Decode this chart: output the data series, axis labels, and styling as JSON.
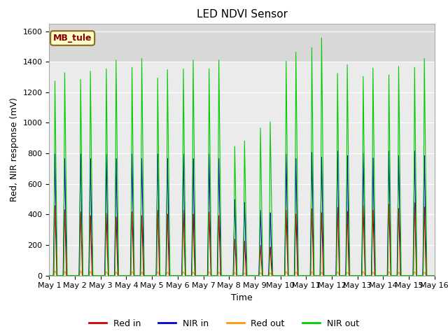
{
  "title": "LED NDVI Sensor",
  "xlabel": "Time",
  "ylabel": "Red, NIR response (mV)",
  "ylim": [
    0,
    1650
  ],
  "background_color": "#ffffff",
  "plot_bg_color": "#ebebeb",
  "shade_above": 1400,
  "shade_color": "#d8d8d8",
  "annotation_text": "MB_tule",
  "annotation_bg": "#ffffcc",
  "annotation_border": "#8b6914",
  "annotation_text_color": "#8b0000",
  "legend_entries": [
    "Red in",
    "NIR in",
    "Red out",
    "NIR out"
  ],
  "line_colors": [
    "#cc0000",
    "#0000cc",
    "#ff9900",
    "#00cc00"
  ],
  "xtick_labels": [
    "May 1",
    "May 2",
    "May 3",
    "May 4",
    "May 5",
    "May 6",
    "May 7",
    "May 8",
    "May 9",
    "May 10",
    "May 11",
    "May 12",
    "May 13",
    "May 14",
    "May 15",
    "May 16"
  ],
  "days": 15,
  "red_in_peaks": [
    460,
    420,
    410,
    420,
    430,
    430,
    420,
    240,
    200,
    430,
    440,
    450,
    460,
    470,
    480
  ],
  "nir_in_peaks": [
    800,
    800,
    800,
    800,
    800,
    800,
    800,
    500,
    430,
    800,
    810,
    820,
    805,
    820,
    820
  ],
  "red_out_peaks": [
    30,
    30,
    25,
    25,
    25,
    25,
    25,
    20,
    20,
    25,
    25,
    25,
    25,
    25,
    25
  ],
  "nir_out_peaks": [
    1280,
    1290,
    1360,
    1370,
    1300,
    1360,
    1360,
    850,
    970,
    1410,
    1500,
    1330,
    1310,
    1320,
    1370
  ],
  "title_fontsize": 11,
  "label_fontsize": 9,
  "tick_fontsize": 8
}
